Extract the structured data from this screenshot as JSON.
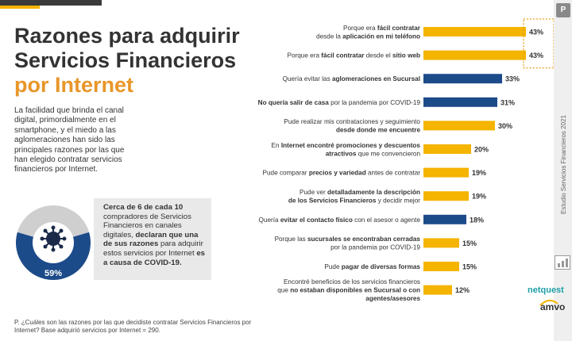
{
  "header": {
    "title_line1": "Razones para adquirir",
    "title_line2": "Servicios Financieros",
    "title_line3": "por Internet"
  },
  "intro_text": "La facilidad que brinda el canal digital, primordialmente en el smartphone, y el miedo a las aglomeraciones han sido las principales razones por las que han elegido contratar servicios financieros por Internet.",
  "callout": {
    "text_a": "Cerca de 6 de cada 10",
    "text_b": " compradores de Servicios Financieros en canales digitales, ",
    "text_c": "declaran que una de sus razones",
    "text_d": " para adquirir estos servicios por Internet ",
    "text_e": "es a causa de COVID-19.",
    "percent_label": "59%",
    "percent_value": 59
  },
  "footnote": "P. ¿Cuáles son las razones por las que decidiste contratar Servicios Financieros por Internet? Base adquirió servicios por Internet = 290.",
  "sidebar": {
    "badge": "P",
    "vertical_text": "Estudio Servicios Financieros 2021",
    "logo_netquest": "netquest",
    "logo_amvo": "amvo"
  },
  "colors": {
    "yellow": "#f4b400",
    "navy": "#1c4b8a",
    "orange": "#e8962a",
    "dark": "#333333",
    "highlight_border": "#e8a020"
  },
  "chart_data": {
    "type": "bar",
    "orientation": "horizontal",
    "categories": [
      [
        {
          "t": "Porque era ",
          "b": false
        },
        {
          "t": "fácil contratar",
          "b": true
        },
        {
          "t": "|desde la ",
          "b": false
        },
        {
          "t": "aplicación en mi teléfono",
          "b": true
        }
      ],
      [
        {
          "t": "Porque era ",
          "b": false
        },
        {
          "t": "fácil contratar",
          "b": true
        },
        {
          "t": " desde el ",
          "b": false
        },
        {
          "t": "sitio web",
          "b": true
        }
      ],
      [
        {
          "t": "Quería evitar las ",
          "b": false
        },
        {
          "t": "aglomeraciones en Sucursal",
          "b": true
        }
      ],
      [
        {
          "t": "No quería salir de casa",
          "b": true
        },
        {
          "t": " por la pandemia por COVID-19",
          "b": false
        }
      ],
      [
        {
          "t": "Pude realizar mis contrataciones y seguimiento|",
          "b": false
        },
        {
          "t": "desde donde me encuentre",
          "b": true
        }
      ],
      [
        {
          "t": "En ",
          "b": false
        },
        {
          "t": "Internet encontré promociones y descuentos|atractivos",
          "b": true
        },
        {
          "t": " que me convencieron",
          "b": false
        }
      ],
      [
        {
          "t": "Pude comparar ",
          "b": false
        },
        {
          "t": "precios y variedad",
          "b": true
        },
        {
          "t": " antes de contratar",
          "b": false
        }
      ],
      [
        {
          "t": "Pude ver ",
          "b": false
        },
        {
          "t": "detalladamente la descripción|de los Servicios Financieros",
          "b": true
        },
        {
          "t": " y decidir mejor",
          "b": false
        }
      ],
      [
        {
          "t": "Quería ",
          "b": false
        },
        {
          "t": "evitar el contacto físico",
          "b": true
        },
        {
          "t": " con el asesor o agente",
          "b": false
        }
      ],
      [
        {
          "t": "Porque las ",
          "b": false
        },
        {
          "t": "sucursales se encontraban cerradas",
          "b": true
        },
        {
          "t": "|por la pandemia por COVID-19",
          "b": false
        }
      ],
      [
        {
          "t": "Pude ",
          "b": false
        },
        {
          "t": "pagar de diversas formas",
          "b": true
        }
      ],
      [
        {
          "t": "Encontré beneficios de los servicios financieros|que ",
          "b": false
        },
        {
          "t": "no estaban disponibles en Sucursal o con|agentes/asesores",
          "b": true
        }
      ]
    ],
    "values": [
      43,
      43,
      33,
      31,
      30,
      20,
      19,
      19,
      18,
      15,
      15,
      12
    ],
    "value_labels": [
      "43%",
      "43%",
      "33%",
      "31%",
      "30%",
      "20%",
      "19%",
      "19%",
      "18%",
      "15%",
      "15%",
      "12%"
    ],
    "bar_colors": [
      "yellow",
      "yellow",
      "navy",
      "navy",
      "yellow",
      "yellow",
      "yellow",
      "yellow",
      "navy",
      "yellow",
      "yellow",
      "yellow"
    ],
    "highlighted": [
      0,
      1
    ],
    "unit": "%"
  }
}
